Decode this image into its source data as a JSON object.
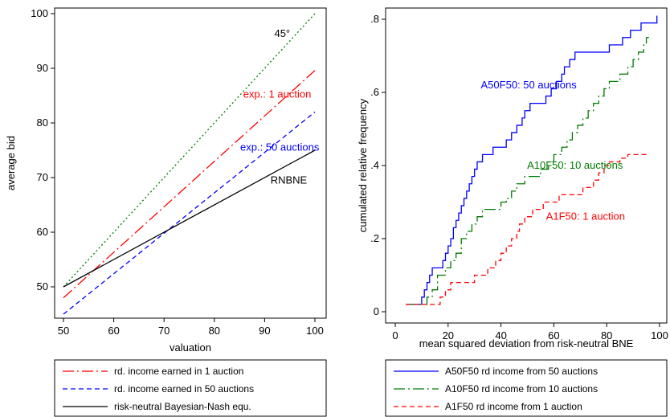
{
  "chart_data": [
    {
      "type": "line",
      "xlabel": "valuation",
      "ylabel": "average bid",
      "xlim": [
        50,
        100
      ],
      "ylim": [
        45,
        100
      ],
      "xticks": [
        50,
        60,
        70,
        80,
        90,
        100
      ],
      "yticks": [
        50,
        60,
        70,
        80,
        90,
        100
      ],
      "grid": false,
      "legend_position": "bottom",
      "series": [
        {
          "key": "deg45",
          "x": [
            50,
            100
          ],
          "y": [
            50,
            100
          ],
          "color": "#007a00",
          "dash": "dotted"
        },
        {
          "key": "exp1",
          "name": "rd. income earned in 1 auction",
          "x": [
            50,
            100
          ],
          "y": [
            48,
            89.6
          ],
          "color": "#ff0000",
          "dash": "dashdot"
        },
        {
          "key": "exp50",
          "name": "rd. income earned in 50 auctions",
          "x": [
            50,
            100
          ],
          "y": [
            45,
            82
          ],
          "color": "#0000ff",
          "dash": "dashed"
        },
        {
          "key": "rnbne",
          "name": "risk-neutral Bayesian-Nash equ.",
          "x": [
            50,
            100
          ],
          "y": [
            50,
            75
          ],
          "color": "#000000",
          "dash": "solid"
        }
      ],
      "annotations": [
        {
          "key": "a45",
          "text": "45°",
          "x": 93.5,
          "y": 96.3,
          "color": "#000000"
        },
        {
          "key": "aexp1",
          "text": "exp.: 1 auction",
          "x": 92.5,
          "y": 85.2,
          "color": "#ff0000"
        },
        {
          "key": "aexp50",
          "text": "exp.: 50 auctions",
          "x": 93,
          "y": 75.5,
          "color": "#0000ff"
        },
        {
          "key": "arn",
          "text": "RNBNE",
          "x": 94.8,
          "y": 69.5,
          "color": "#000000"
        }
      ]
    },
    {
      "type": "line",
      "step": true,
      "xlabel": "mean squared deviation from risk-neutral BNE",
      "ylabel": "cumulated relative frequency",
      "xlim": [
        0,
        100
      ],
      "ylim": [
        0,
        0.8
      ],
      "xticks": [
        0,
        20,
        40,
        60,
        80,
        100
      ],
      "yticks": [
        0,
        0.2,
        0.4,
        0.6,
        0.8
      ],
      "ytick_labels": [
        "0",
        ".2",
        ".4",
        ".6",
        ".8"
      ],
      "grid": false,
      "legend_position": "bottom",
      "series": [
        {
          "key": "a50",
          "name": "A50F50 rd income from 50 auctions",
          "color": "#0000ff",
          "dash": "solid",
          "x": [
            4,
            10,
            11,
            12,
            13,
            14,
            16,
            18,
            19,
            20,
            21,
            22,
            23,
            24,
            25,
            26,
            27,
            28,
            29,
            30,
            31,
            33,
            35,
            37,
            40,
            42,
            44,
            46,
            48,
            49,
            51,
            53,
            55,
            57,
            59,
            61,
            63,
            64,
            66,
            68,
            70,
            72,
            75,
            78,
            81,
            83,
            86,
            89,
            91,
            93,
            96,
            99
          ],
          "y": [
            0.02,
            0.04,
            0.06,
            0.08,
            0.1,
            0.12,
            0.12,
            0.14,
            0.16,
            0.18,
            0.2,
            0.23,
            0.25,
            0.27,
            0.29,
            0.31,
            0.33,
            0.35,
            0.37,
            0.39,
            0.41,
            0.43,
            0.43,
            0.45,
            0.45,
            0.47,
            0.49,
            0.51,
            0.53,
            0.55,
            0.57,
            0.57,
            0.57,
            0.59,
            0.61,
            0.63,
            0.65,
            0.67,
            0.69,
            0.71,
            0.71,
            0.71,
            0.71,
            0.71,
            0.73,
            0.73,
            0.75,
            0.77,
            0.77,
            0.79,
            0.79,
            0.81
          ]
        },
        {
          "key": "a10",
          "name": "A10F50 rd income from 10 auctions",
          "color": "#007a00",
          "dash": "dashdot",
          "x": [
            4,
            12,
            14,
            16,
            19,
            21,
            23,
            25,
            27,
            29,
            31,
            33,
            37,
            40,
            42,
            44,
            46,
            49,
            52,
            55,
            58,
            60,
            63,
            65,
            67,
            69,
            71,
            73,
            75,
            77,
            79,
            81,
            83,
            85,
            88,
            90,
            92,
            94,
            95,
            96
          ],
          "y": [
            0.02,
            0.04,
            0.06,
            0.1,
            0.12,
            0.14,
            0.16,
            0.2,
            0.22,
            0.24,
            0.26,
            0.28,
            0.28,
            0.3,
            0.31,
            0.33,
            0.35,
            0.37,
            0.37,
            0.39,
            0.41,
            0.43,
            0.45,
            0.47,
            0.49,
            0.51,
            0.53,
            0.55,
            0.57,
            0.59,
            0.61,
            0.63,
            0.63,
            0.65,
            0.67,
            0.69,
            0.71,
            0.73,
            0.75,
            0.75
          ]
        },
        {
          "key": "a1",
          "name": "A1F50 rd income from 1 auction",
          "color": "#ff0000",
          "dash": "dashed",
          "x": [
            4,
            15,
            17,
            19,
            21,
            23,
            25,
            30,
            33,
            35,
            38,
            40,
            42,
            44,
            46,
            47,
            49,
            51,
            52,
            54,
            56,
            58,
            60,
            62,
            65,
            68,
            71,
            73,
            75,
            77,
            79,
            81,
            83,
            85,
            88,
            92,
            96
          ],
          "y": [
            0.02,
            0.02,
            0.04,
            0.06,
            0.08,
            0.08,
            0.08,
            0.1,
            0.1,
            0.12,
            0.14,
            0.16,
            0.18,
            0.2,
            0.22,
            0.24,
            0.26,
            0.26,
            0.28,
            0.28,
            0.3,
            0.3,
            0.3,
            0.32,
            0.32,
            0.32,
            0.34,
            0.34,
            0.36,
            0.38,
            0.4,
            0.41,
            0.41,
            0.42,
            0.43,
            0.43,
            0.43
          ]
        }
      ],
      "annotations": [
        {
          "key": "aa50",
          "text": "A50F50: 50 auctions",
          "x": 50.5,
          "y": 0.62,
          "color": "#0000ff"
        },
        {
          "key": "aa10",
          "text": "A10F50: 10 auctions",
          "x": 68,
          "y": 0.4,
          "color": "#007a00"
        },
        {
          "key": "aa1",
          "text": "A1F50: 1 auction",
          "x": 72,
          "y": 0.26,
          "color": "#ff0000"
        }
      ]
    }
  ]
}
